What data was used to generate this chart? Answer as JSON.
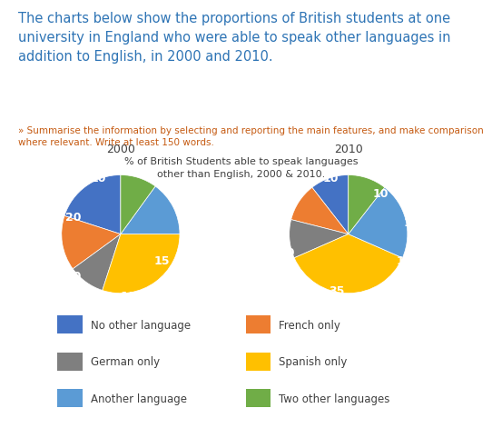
{
  "title_line1": "The charts below show the proportions of British students at one",
  "title_line2": "university in England who were able to speak other languages in",
  "title_line3": "addition to English, in 2000 and 2010.",
  "subtitle": "» Summarise the information by selecting and reporting the main features, and make comparison\nwhere relevant. Write at least 150 words.",
  "chart_title_line1": "% of British Students able to speak languages",
  "chart_title_line2": "other than English, 2000 & 2010.",
  "year_2000": "2000",
  "year_2010": "2010",
  "categories": [
    "No other language",
    "French only",
    "German only",
    "Spanish only",
    "Another language",
    "Two other languages"
  ],
  "colors": [
    "#4472C4",
    "#ED7D31",
    "#7F7F7F",
    "#FFC000",
    "#5B9BD5",
    "#70AD47"
  ],
  "values_2000": [
    20,
    15,
    10,
    30,
    15,
    10
  ],
  "values_2010": [
    10,
    10,
    10,
    35,
    20,
    10
  ],
  "background": "#ffffff",
  "title_color": "#2E74B5",
  "subtitle_color": "#C55A11",
  "chart_title_color": "#404040",
  "label_fontsize": 9,
  "legend_fontsize": 8.5
}
